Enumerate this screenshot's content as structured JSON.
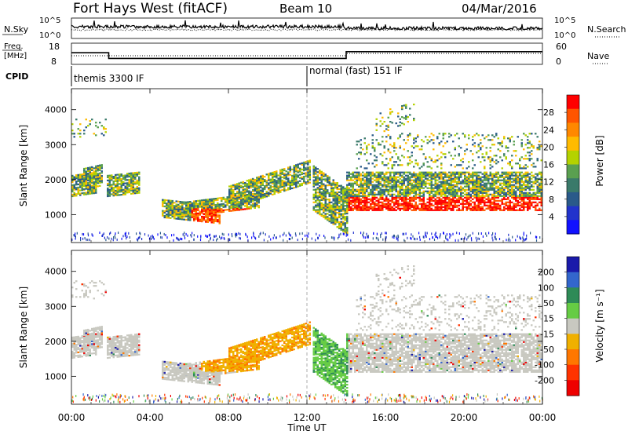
{
  "header": {
    "station": "Fort Hays West (fitACF)",
    "beam": "Beam 10",
    "date": "04/Mar/2016"
  },
  "chart_data": [
    {
      "type": "line",
      "name": "nsky-nsearch-panel",
      "left_label": "N.Sky",
      "right_label": "N.Search",
      "left_ticks": [
        "10^5",
        "10^0"
      ],
      "right_ticks": [
        "10^5",
        "10^0"
      ]
    },
    {
      "type": "line",
      "name": "freq-nave-panel",
      "left_label_top": "Freq.",
      "left_label_bottom": "[MHz]",
      "right_label": "Nave",
      "left_ticks": [
        "18",
        "8"
      ],
      "right_ticks": [
        "60",
        "0"
      ],
      "freq_steps": [
        {
          "t": 0,
          "f": 13.5
        },
        {
          "t": 1.9,
          "f": 10.8
        },
        {
          "t": 14.0,
          "f": 14.0
        },
        {
          "t": 24,
          "f": 14.0
        }
      ]
    },
    {
      "type": "table",
      "name": "cpid-panel",
      "label": "CPID",
      "modes": [
        {
          "start": 0,
          "label": "themis 3300 IF"
        },
        {
          "start": 12.0,
          "label": "normal (fast) 151 IF"
        }
      ]
    },
    {
      "type": "heatmap",
      "name": "power-panel",
      "ylabel": "Slant Range [km]",
      "yticks": [
        1000,
        2000,
        3000,
        4000
      ],
      "ylim": [
        200,
        4600
      ],
      "xlim": [
        0,
        24
      ],
      "colorbar": {
        "label": "Power [dB]",
        "ticks": [
          "28",
          "24",
          "20",
          "16",
          "12",
          "8",
          "4"
        ],
        "colors": [
          "#ff0000",
          "#ff5500",
          "#ff8800",
          "#ffbb00",
          "#b4d200",
          "#5aa050",
          "#3a7a6a",
          "#2a5a8a",
          "#2233cc",
          "#1111ff"
        ]
      }
    },
    {
      "type": "heatmap",
      "name": "velocity-panel",
      "ylabel": "Slant Range [km]",
      "yticks": [
        1000,
        2000,
        3000,
        4000
      ],
      "ylim": [
        200,
        4600
      ],
      "xlim": [
        0,
        24
      ],
      "colorbar": {
        "label": "Velocity [m s⁻¹]",
        "ticks": [
          "200",
          "100",
          "50",
          "15",
          "-15",
          "-50",
          "-100",
          "-200"
        ],
        "colors": [
          "#1a1aaa",
          "#3366cc",
          "#2e8b57",
          "#66cc44",
          "#c8c8c0",
          "#f0b000",
          "#ff7700",
          "#ff3300",
          "#ee0000"
        ]
      }
    }
  ],
  "xaxis": {
    "label": "Time UT",
    "ticks": [
      "00:00",
      "04:00",
      "08:00",
      "12:00",
      "16:00",
      "20:00",
      "00:00"
    ]
  }
}
